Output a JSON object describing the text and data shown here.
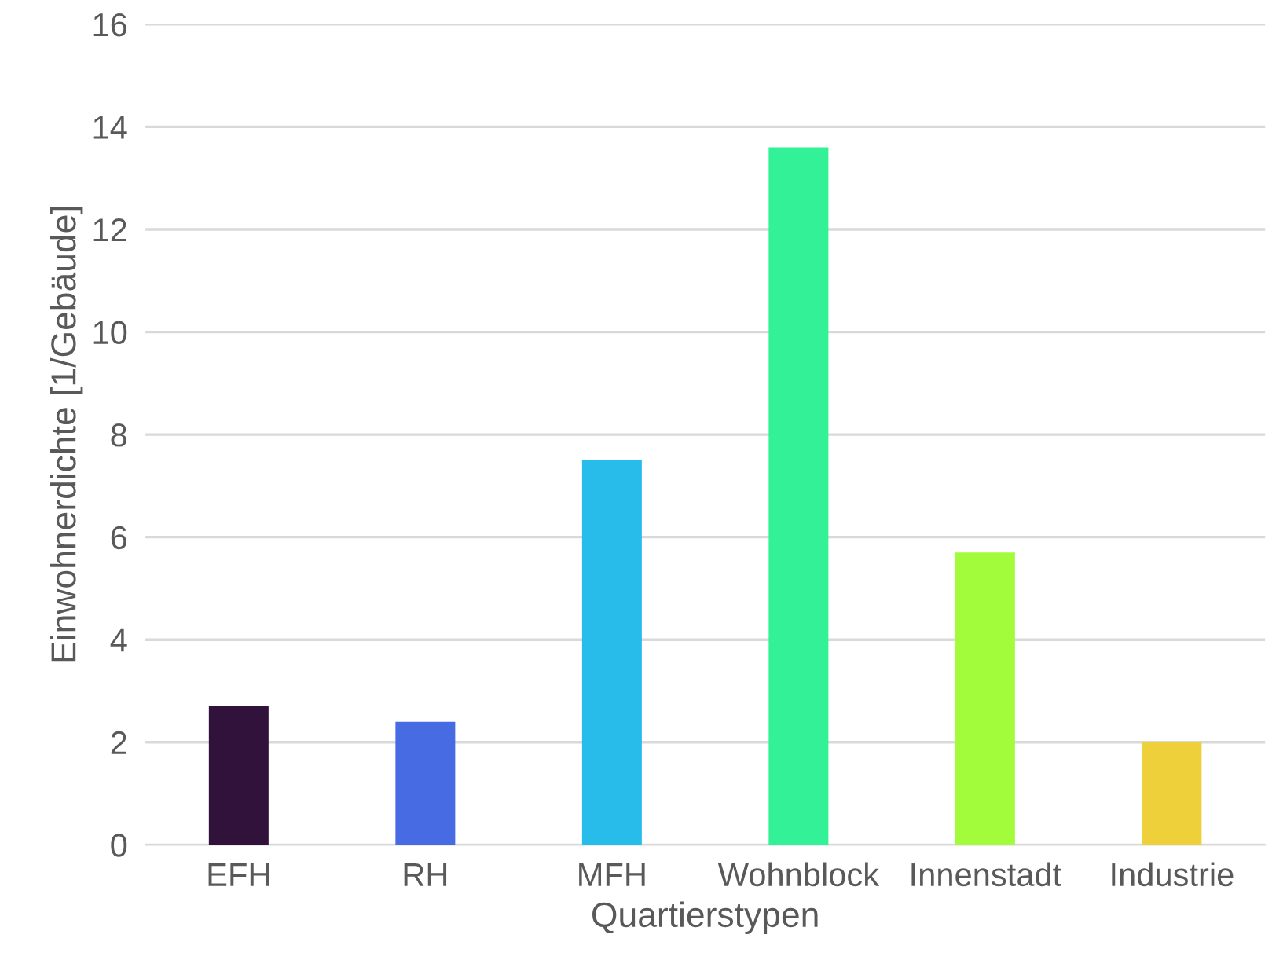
{
  "chart_data": {
    "type": "bar",
    "xlabel": "Quartierstypen",
    "ylabel": "Einwohnerdichte [1/Gebäude]",
    "categories": [
      "EFH",
      "RH",
      "MFH",
      "Wohnblock",
      "Innenstadt",
      "Industrie"
    ],
    "values": [
      2.7,
      2.4,
      7.5,
      13.6,
      5.7,
      2.0
    ],
    "colors": [
      "#30123b",
      "#466be3",
      "#28bceb",
      "#32f197",
      "#a2fc3c",
      "#edd03a"
    ],
    "ylim": [
      0,
      16
    ],
    "yticks": [
      0,
      2,
      4,
      6,
      8,
      10,
      12,
      14,
      16
    ],
    "grid": "y"
  }
}
